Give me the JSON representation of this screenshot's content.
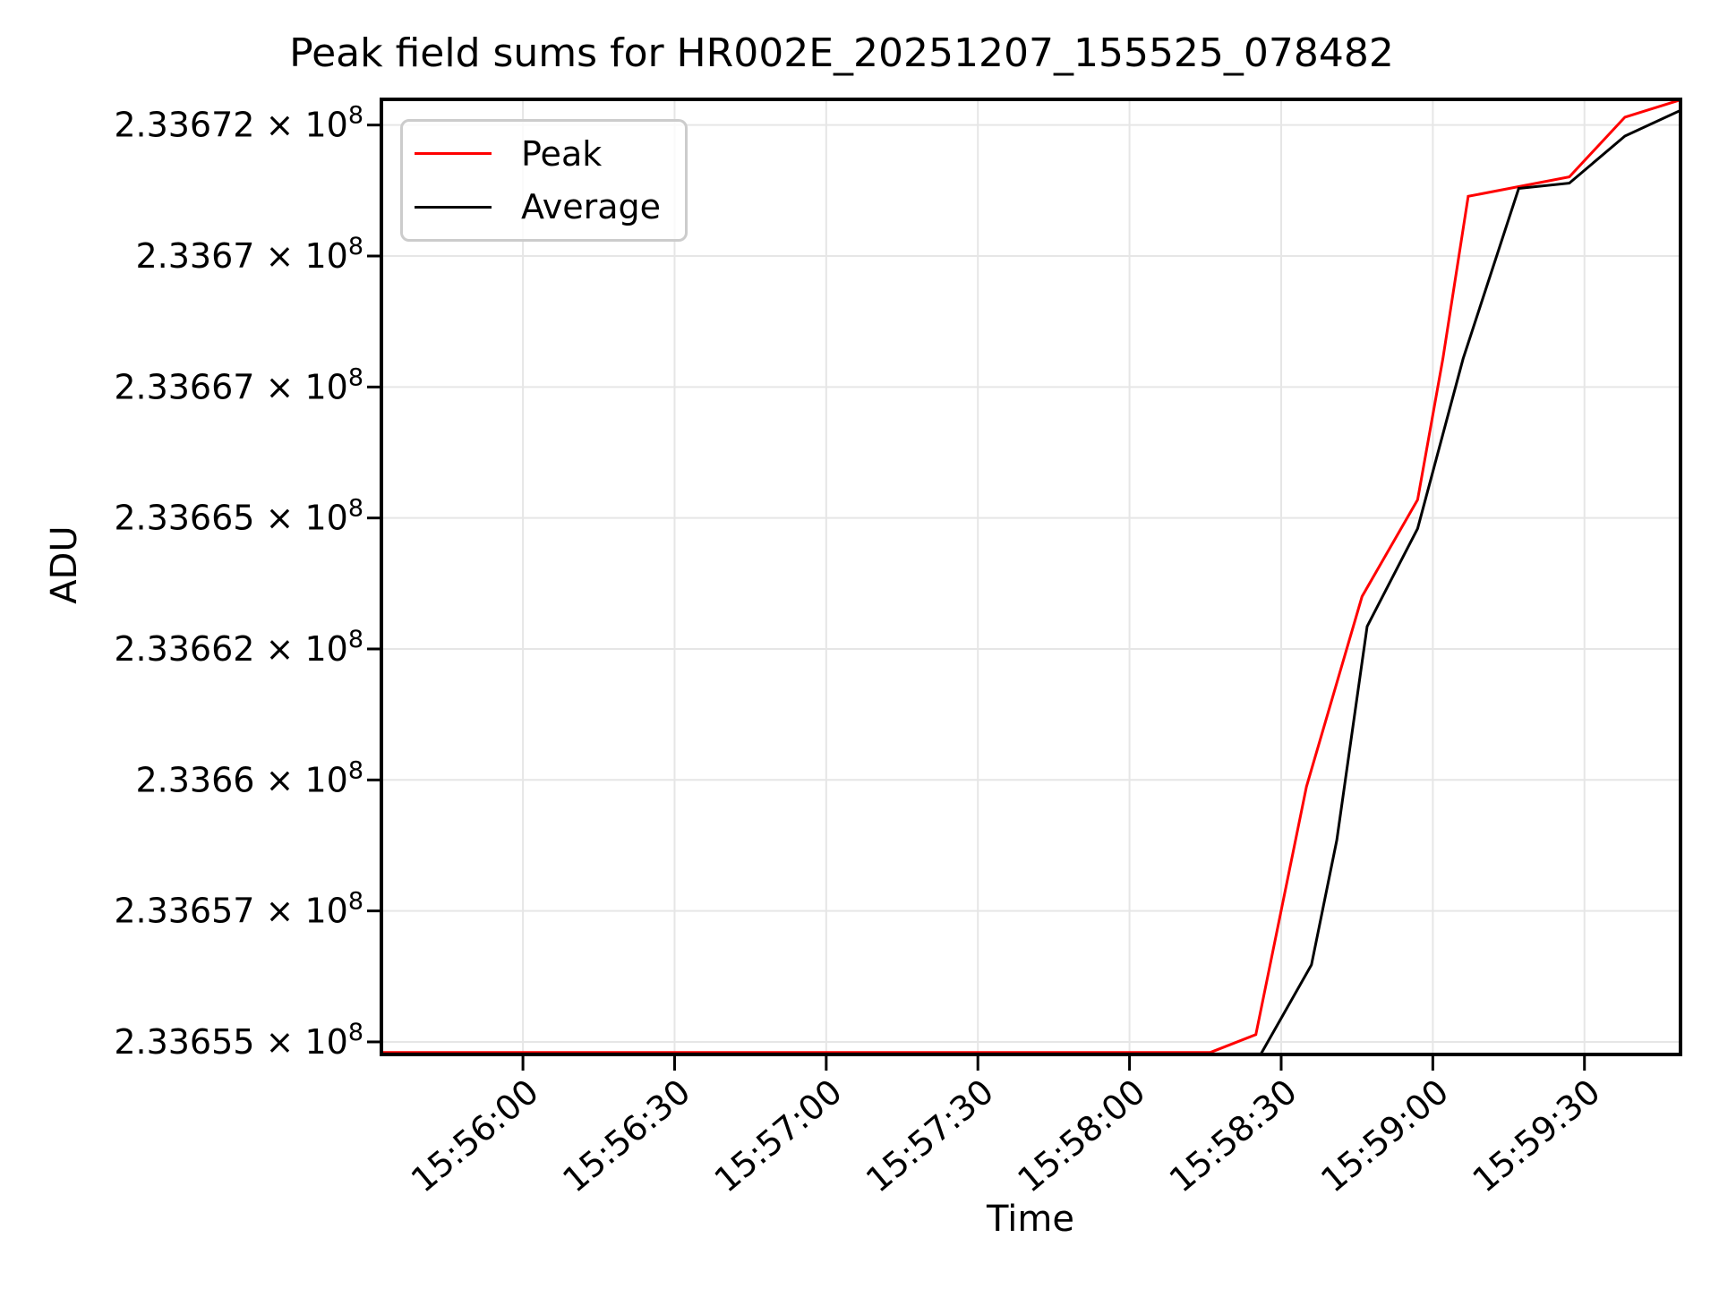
{
  "title": "Peak field sums for HR002E_20251207_155525_078482",
  "axes": {
    "xlabel": "Time",
    "ylabel": "ADU"
  },
  "legend": {
    "position": "upper left",
    "items": [
      {
        "label": "Peak",
        "color": "#ff0000"
      },
      {
        "label": "Average",
        "color": "#000000"
      }
    ]
  },
  "colors": {
    "peak": "#ff0000",
    "average": "#000000",
    "grid": "#e6e6e6",
    "spine": "#000000",
    "legend_border": "#cccccc",
    "background": "#ffffff"
  },
  "chart_data": {
    "type": "line",
    "title": "Peak field sums for HR002E_20251207_155525_078482",
    "xlabel": "Time",
    "ylabel": "ADU",
    "grid": true,
    "legend_position": "upper left",
    "x_range": [
      "15:55:32",
      "15:59:49"
    ],
    "y_range": [
      233654760,
      233672990
    ],
    "x_ticks": [
      "15:56:00",
      "15:56:30",
      "15:57:00",
      "15:57:30",
      "15:58:00",
      "15:58:30",
      "15:59:00",
      "15:59:30"
    ],
    "x_tick_rotation_deg": -40,
    "y_tick_infix": " × 10",
    "y_tick_exponent": "8",
    "y_ticks": [
      {
        "value": 233655000,
        "mantissa": "2.33655"
      },
      {
        "value": 233657500,
        "mantissa": "2.33657"
      },
      {
        "value": 233660000,
        "mantissa": "2.3366"
      },
      {
        "value": 233662500,
        "mantissa": "2.33662"
      },
      {
        "value": 233665000,
        "mantissa": "2.33665"
      },
      {
        "value": 233667500,
        "mantissa": "2.33667"
      },
      {
        "value": 233670000,
        "mantissa": "2.3367"
      },
      {
        "value": 233672500,
        "mantissa": "2.33672"
      }
    ],
    "series": [
      {
        "name": "Peak",
        "color": "#ff0000",
        "points": [
          [
            "15:55:32",
            233654800
          ],
          [
            "15:58:16",
            233654800
          ],
          [
            "15:58:25",
            233655140
          ],
          [
            "15:58:35",
            233659870
          ],
          [
            "15:58:46",
            233663500
          ],
          [
            "15:58:57",
            233665350
          ],
          [
            "15:59:02",
            233668040
          ],
          [
            "15:59:07",
            233671140
          ],
          [
            "15:59:27",
            233671510
          ],
          [
            "15:59:38",
            233672650
          ],
          [
            "15:59:49",
            233672980
          ]
        ]
      },
      {
        "name": "Average",
        "color": "#000000",
        "points": [
          [
            "15:55:32",
            233654770
          ],
          [
            "15:58:26",
            233654770
          ],
          [
            "15:58:36",
            233656470
          ],
          [
            "15:58:41",
            233658850
          ],
          [
            "15:58:47",
            233662930
          ],
          [
            "15:58:57",
            233664800
          ],
          [
            "15:59:06",
            233668040
          ],
          [
            "15:59:17",
            233671290
          ],
          [
            "15:59:27",
            233671390
          ],
          [
            "15:59:38",
            233672290
          ],
          [
            "15:59:49",
            233672780
          ]
        ]
      }
    ]
  }
}
